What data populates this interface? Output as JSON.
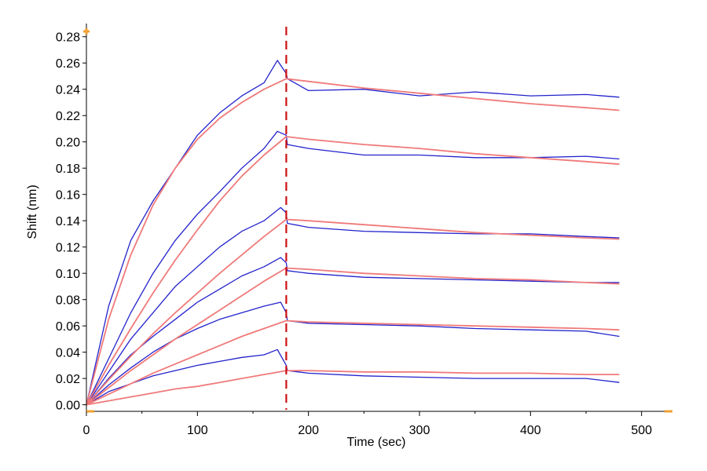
{
  "chart_data": {
    "type": "line",
    "title": "",
    "xlabel": "Time (sec)",
    "ylabel": "Shift (nm)",
    "xlim": [
      0,
      525
    ],
    "ylim": [
      -0.005,
      0.29
    ],
    "x_ticks": [
      0,
      100,
      200,
      300,
      400,
      500
    ],
    "y_ticks": [
      0.0,
      0.02,
      0.04,
      0.06,
      0.08,
      0.1,
      0.12,
      0.14,
      0.16,
      0.18,
      0.2,
      0.22,
      0.24,
      0.26,
      0.28
    ],
    "x_tick_labels": [
      "0",
      "100",
      "200",
      "300",
      "400",
      "500"
    ],
    "y_tick_labels": [
      "0.00",
      "0.02",
      "0.04",
      "0.06",
      "0.08",
      "0.10",
      "0.12",
      "0.14",
      "0.16",
      "0.18",
      "0.20",
      "0.22",
      "0.24",
      "0.26",
      "0.28"
    ],
    "grid": false,
    "legend": "none",
    "step_marker": {
      "x": 180,
      "color": "#cc1111"
    },
    "colors": {
      "measured": "#2222cc",
      "fit": "#f07a7a"
    },
    "series": [
      {
        "kind": "measured",
        "x": [
          0,
          20,
          40,
          60,
          80,
          100,
          120,
          140,
          160,
          172,
          180,
          181,
          200,
          250,
          300,
          350,
          400,
          450,
          480
        ],
        "y": [
          0.0,
          0.075,
          0.125,
          0.155,
          0.18,
          0.205,
          0.222,
          0.235,
          0.245,
          0.262,
          0.252,
          0.248,
          0.239,
          0.24,
          0.235,
          0.238,
          0.235,
          0.236,
          0.234
        ]
      },
      {
        "kind": "fit",
        "x": [
          0,
          20,
          40,
          60,
          80,
          100,
          120,
          140,
          160,
          180,
          200,
          250,
          300,
          350,
          400,
          450,
          480
        ],
        "y": [
          0.0,
          0.065,
          0.114,
          0.152,
          0.18,
          0.202,
          0.218,
          0.23,
          0.24,
          0.248,
          0.246,
          0.241,
          0.237,
          0.233,
          0.229,
          0.226,
          0.224
        ]
      },
      {
        "kind": "measured",
        "x": [
          0,
          20,
          40,
          60,
          80,
          100,
          120,
          140,
          160,
          172,
          180,
          181,
          200,
          250,
          300,
          350,
          400,
          450,
          480
        ],
        "y": [
          0.0,
          0.035,
          0.07,
          0.1,
          0.125,
          0.145,
          0.162,
          0.18,
          0.195,
          0.208,
          0.205,
          0.198,
          0.195,
          0.19,
          0.19,
          0.188,
          0.188,
          0.189,
          0.187
        ]
      },
      {
        "kind": "fit",
        "x": [
          0,
          20,
          40,
          60,
          80,
          100,
          120,
          140,
          160,
          180,
          200,
          250,
          300,
          350,
          400,
          450,
          480
        ],
        "y": [
          0.0,
          0.03,
          0.058,
          0.085,
          0.11,
          0.133,
          0.155,
          0.174,
          0.19,
          0.204,
          0.202,
          0.198,
          0.195,
          0.191,
          0.188,
          0.185,
          0.183
        ]
      },
      {
        "kind": "measured",
        "x": [
          0,
          20,
          40,
          60,
          80,
          100,
          120,
          140,
          160,
          175,
          180,
          181,
          200,
          250,
          300,
          350,
          400,
          450,
          480
        ],
        "y": [
          0.0,
          0.025,
          0.05,
          0.07,
          0.09,
          0.105,
          0.12,
          0.132,
          0.14,
          0.15,
          0.146,
          0.138,
          0.135,
          0.132,
          0.131,
          0.13,
          0.13,
          0.128,
          0.127
        ]
      },
      {
        "kind": "fit",
        "x": [
          0,
          20,
          40,
          60,
          80,
          100,
          120,
          140,
          160,
          180,
          200,
          250,
          300,
          350,
          400,
          450,
          480
        ],
        "y": [
          0.0,
          0.019,
          0.037,
          0.054,
          0.07,
          0.085,
          0.1,
          0.114,
          0.128,
          0.141,
          0.14,
          0.137,
          0.134,
          0.131,
          0.129,
          0.127,
          0.126
        ]
      },
      {
        "kind": "measured",
        "x": [
          0,
          20,
          40,
          60,
          80,
          100,
          120,
          140,
          160,
          175,
          180,
          181,
          200,
          250,
          300,
          350,
          400,
          450,
          480
        ],
        "y": [
          0.0,
          0.02,
          0.038,
          0.052,
          0.065,
          0.078,
          0.088,
          0.098,
          0.105,
          0.112,
          0.108,
          0.102,
          0.1,
          0.097,
          0.096,
          0.095,
          0.094,
          0.093,
          0.093
        ]
      },
      {
        "kind": "fit",
        "x": [
          0,
          20,
          40,
          60,
          80,
          100,
          120,
          140,
          160,
          180,
          200,
          250,
          300,
          350,
          400,
          450,
          480
        ],
        "y": [
          0.0,
          0.013,
          0.026,
          0.038,
          0.05,
          0.061,
          0.072,
          0.083,
          0.094,
          0.104,
          0.103,
          0.1,
          0.098,
          0.096,
          0.095,
          0.093,
          0.092
        ]
      },
      {
        "kind": "measured",
        "x": [
          0,
          20,
          40,
          60,
          80,
          100,
          120,
          140,
          160,
          175,
          180,
          181,
          200,
          250,
          300,
          350,
          400,
          450,
          480
        ],
        "y": [
          0.0,
          0.015,
          0.028,
          0.04,
          0.05,
          0.058,
          0.065,
          0.07,
          0.075,
          0.078,
          0.07,
          0.064,
          0.062,
          0.061,
          0.06,
          0.058,
          0.057,
          0.056,
          0.052
        ]
      },
      {
        "kind": "fit",
        "x": [
          0,
          20,
          40,
          60,
          80,
          100,
          120,
          140,
          160,
          180,
          200,
          250,
          300,
          350,
          400,
          450,
          480
        ],
        "y": [
          0.0,
          0.008,
          0.016,
          0.024,
          0.031,
          0.038,
          0.045,
          0.052,
          0.058,
          0.064,
          0.063,
          0.062,
          0.061,
          0.06,
          0.059,
          0.058,
          0.057
        ]
      },
      {
        "kind": "measured",
        "x": [
          0,
          20,
          40,
          60,
          80,
          100,
          120,
          140,
          160,
          172,
          180,
          181,
          200,
          250,
          300,
          350,
          400,
          450,
          480
        ],
        "y": [
          0.0,
          0.01,
          0.016,
          0.022,
          0.026,
          0.03,
          0.033,
          0.036,
          0.038,
          0.042,
          0.03,
          0.026,
          0.024,
          0.022,
          0.021,
          0.02,
          0.02,
          0.02,
          0.017
        ]
      },
      {
        "kind": "fit",
        "x": [
          0,
          20,
          40,
          60,
          80,
          100,
          120,
          140,
          160,
          180,
          200,
          250,
          300,
          350,
          400,
          450,
          480
        ],
        "y": [
          0.0,
          0.003,
          0.006,
          0.009,
          0.012,
          0.014,
          0.017,
          0.02,
          0.023,
          0.026,
          0.026,
          0.025,
          0.025,
          0.024,
          0.024,
          0.023,
          0.023
        ]
      }
    ]
  }
}
